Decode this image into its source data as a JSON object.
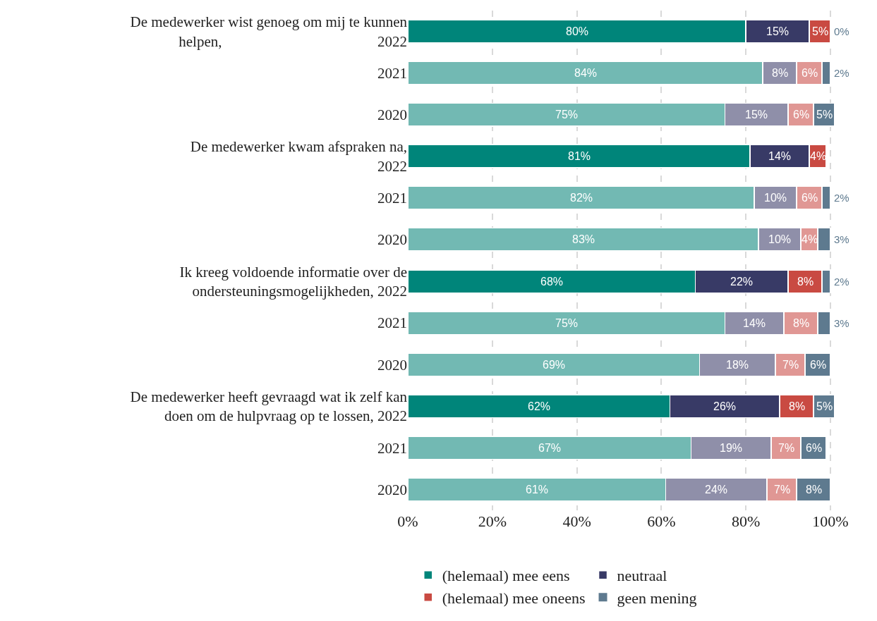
{
  "chart_data": {
    "type": "bar",
    "orientation": "horizontal",
    "stacked": true,
    "categories": [
      "De medewerker wist genoeg om mij te kunnen\nhelpen,                                          2022",
      "2021",
      "2020",
      "De medewerker kwam afspraken na,\n2022",
      "2021",
      "2020",
      "Ik kreeg voldoende informatie over de\nondersteuningsmogelijkheden, 2022",
      "2021",
      "2020",
      "De medewerker heeft gevraagd wat ik zelf kan\ndoen om de hulpvraag op te lossen, 2022",
      "2021",
      "2020"
    ],
    "series": [
      {
        "name": "(helemaal) mee eens",
        "color": "#00857a",
        "colors": [
          "#00857a",
          "#72b9b3",
          "#72b9b3",
          "#00857a",
          "#72b9b3",
          "#72b9b3",
          "#00857a",
          "#72b9b3",
          "#72b9b3",
          "#00857a",
          "#72b9b3",
          "#72b9b3"
        ],
        "values": [
          80,
          84,
          75,
          81,
          82,
          83,
          68,
          75,
          69,
          62,
          67,
          61
        ],
        "value_labels": [
          "80%",
          "84%",
          "75%",
          "81%",
          "82%",
          "83%",
          "68%",
          "75%",
          "69%",
          "62%",
          "67%",
          "61%"
        ]
      },
      {
        "name": "neutraal",
        "color": "#383a66",
        "colors": [
          "#383a66",
          "#8f8fa9",
          "#8f8fa9",
          "#383a66",
          "#8f8fa9",
          "#8f8fa9",
          "#383a66",
          "#8f8fa9",
          "#8f8fa9",
          "#383a66",
          "#8f8fa9",
          "#8f8fa9"
        ],
        "values": [
          15,
          8,
          15,
          14,
          10,
          10,
          22,
          14,
          18,
          26,
          19,
          24
        ],
        "value_labels": [
          "15%",
          "8%",
          "15%",
          "14%",
          "10%",
          "10%",
          "22%",
          "14%",
          "18%",
          "26%",
          "19%",
          "24%"
        ]
      },
      {
        "name": "(helemaal) mee oneens",
        "color": "#c94a42",
        "colors": [
          "#c94a42",
          "#e09794",
          "#e09794",
          "#c94a42",
          "#e09794",
          "#e09794",
          "#c94a42",
          "#e09794",
          "#e09794",
          "#c94a42",
          "#e09794",
          "#e09794"
        ],
        "values": [
          5,
          6,
          6,
          4,
          6,
          4,
          8,
          8,
          7,
          8,
          7,
          7
        ],
        "value_labels": [
          "5%",
          "6%",
          "6%",
          "4%",
          "6%",
          "4%",
          "8%",
          "8%",
          "7%",
          "8%",
          "7%",
          "7%"
        ]
      },
      {
        "name": "geen mening",
        "color": "#5e7a8f",
        "colors": [
          "#5e7a8f",
          "#5e7a8f",
          "#5e7a8f",
          "#5e7a8f",
          "#5e7a8f",
          "#5e7a8f",
          "#5e7a8f",
          "#5e7a8f",
          "#5e7a8f",
          "#5e7a8f",
          "#5e7a8f",
          "#5e7a8f"
        ],
        "values": [
          0,
          2,
          5,
          null,
          2,
          3,
          2,
          3,
          6,
          5,
          6,
          8
        ],
        "value_labels": [
          "0%",
          "2%",
          "5%",
          null,
          "2%",
          "3%",
          "2%",
          "3%",
          "6%",
          "5%",
          "6%",
          "8%"
        ]
      }
    ],
    "xlim": [
      0,
      101
    ],
    "xticks": [
      {
        "value": 0,
        "label": "0%"
      },
      {
        "value": 20,
        "label": "20%"
      },
      {
        "value": 40,
        "label": "40%"
      },
      {
        "value": 60,
        "label": "60%"
      },
      {
        "value": 80,
        "label": "80%"
      },
      {
        "value": 100,
        "label": "100%"
      }
    ],
    "grid": "x",
    "legend": "bottom"
  }
}
